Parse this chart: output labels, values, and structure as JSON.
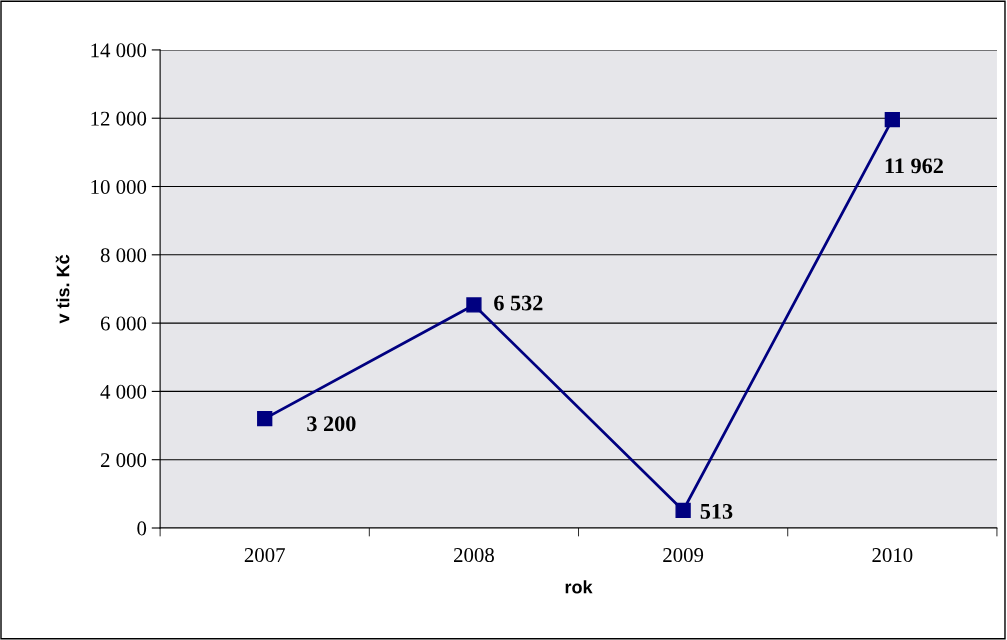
{
  "chart_data": {
    "type": "line",
    "xlabel": "rok",
    "ylabel": "v tis. Kč",
    "categories": [
      "2007",
      "2008",
      "2009",
      "2010"
    ],
    "series": [
      {
        "color": "#000080",
        "values": [
          3200,
          6532,
          513,
          11962
        ],
        "value_labels": [
          "3 200",
          "6 532",
          "513",
          "11 962"
        ]
      }
    ],
    "ylim": [
      0,
      14000
    ],
    "yticks": [
      {
        "value": 0,
        "label": "0"
      },
      {
        "value": 2000,
        "label": "2 000"
      },
      {
        "value": 4000,
        "label": "4 000"
      },
      {
        "value": 6000,
        "label": "6 000"
      },
      {
        "value": 8000,
        "label": "8 000"
      },
      {
        "value": 10000,
        "label": "10 000"
      },
      {
        "value": 12000,
        "label": "12 000"
      },
      {
        "value": 14000,
        "label": "14 000"
      }
    ],
    "grid": "y",
    "marker": "square",
    "line_style": "solid"
  }
}
